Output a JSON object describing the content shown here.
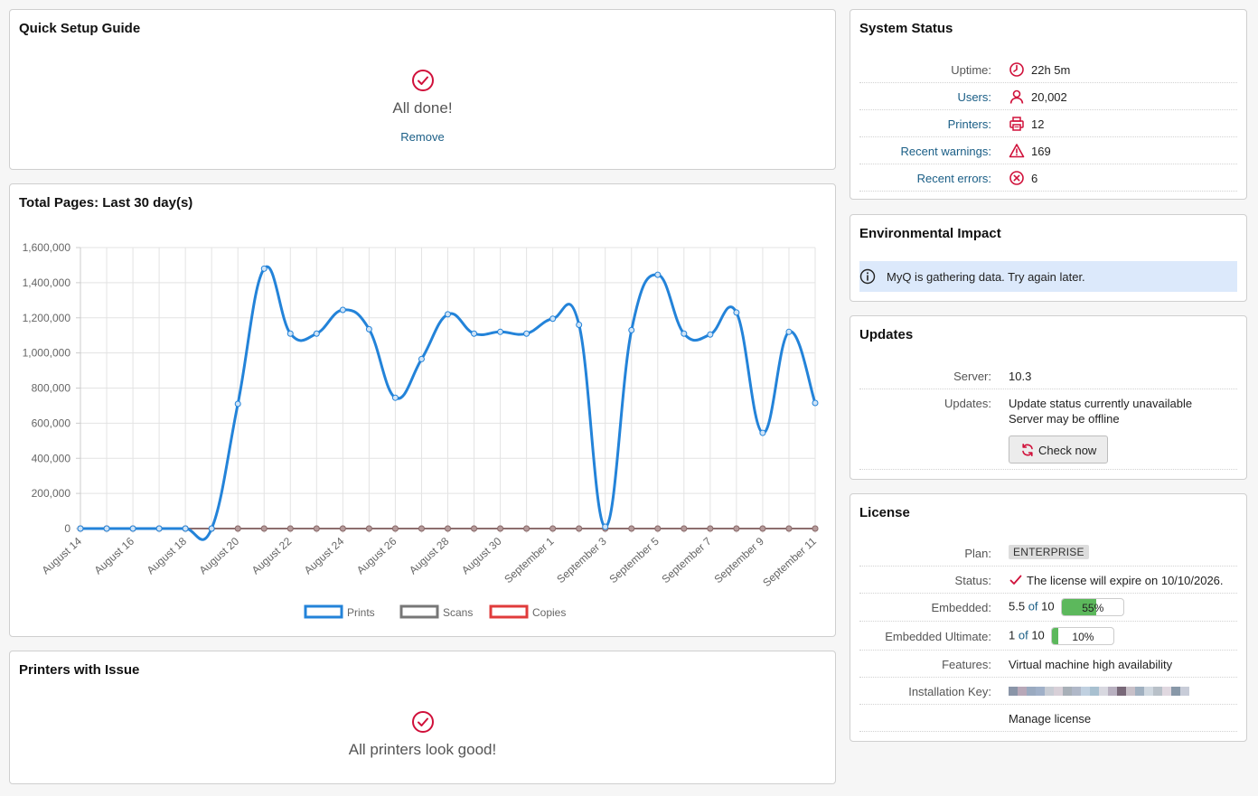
{
  "setup": {
    "title": "Quick Setup Guide",
    "status": "All done!",
    "remove": "Remove"
  },
  "chart_panel": {
    "title": "Total Pages: Last 30 day(s)"
  },
  "chart_data": {
    "type": "line",
    "title": "Total Pages: Last 30 day(s)",
    "x": [
      "August 14",
      "August 15",
      "August 16",
      "August 17",
      "August 18",
      "August 19",
      "August 20",
      "August 21",
      "August 22",
      "August 23",
      "August 24",
      "August 25",
      "August 26",
      "August 27",
      "August 28",
      "August 29",
      "August 30",
      "August 31",
      "September 1",
      "September 2",
      "September 3",
      "September 4",
      "September 5",
      "September 6",
      "September 7",
      "September 8",
      "September 9",
      "September 10",
      "September 11"
    ],
    "x_tick_labels": [
      "August 14",
      "August 16",
      "August 18",
      "August 20",
      "August 22",
      "August 24",
      "August 26",
      "August 28",
      "August 30",
      "September 1",
      "September 3",
      "September 5",
      "September 7",
      "September 9",
      "September 11"
    ],
    "y_tick_labels": [
      "0",
      "200,000",
      "400,000",
      "600,000",
      "800,000",
      "1,000,000",
      "1,200,000",
      "1,400,000",
      "1,600,000"
    ],
    "ylim": [
      0,
      1600000
    ],
    "grid": true,
    "legend_position": "bottom",
    "series": [
      {
        "name": "Prints",
        "color": "#2383d9",
        "values": [
          0,
          0,
          0,
          0,
          0,
          0,
          710000,
          1480000,
          1110000,
          1110000,
          1245000,
          1135000,
          745000,
          965000,
          1220000,
          1110000,
          1120000,
          1110000,
          1195000,
          1160000,
          10000,
          1130000,
          1445000,
          1110000,
          1105000,
          1230000,
          545000,
          1120000,
          715000
        ]
      },
      {
        "name": "Scans",
        "color": "#777777",
        "values": [
          0,
          0,
          0,
          0,
          0,
          0,
          0,
          0,
          0,
          0,
          0,
          0,
          0,
          0,
          0,
          0,
          0,
          0,
          0,
          0,
          0,
          0,
          0,
          0,
          0,
          0,
          0,
          0,
          0
        ]
      },
      {
        "name": "Copies",
        "color": "#e03b3b",
        "values": [
          0,
          0,
          0,
          0,
          0,
          0,
          0,
          0,
          0,
          0,
          0,
          0,
          0,
          0,
          0,
          0,
          0,
          0,
          0,
          0,
          0,
          0,
          0,
          0,
          0,
          0,
          0,
          0,
          0
        ]
      }
    ]
  },
  "printers_issue": {
    "title": "Printers with Issue",
    "status": "All printers look good!"
  },
  "system_status": {
    "title": "System Status",
    "rows": [
      {
        "label": "Uptime:",
        "value": "22h 5m",
        "icon": "clock-icon"
      },
      {
        "label": "Users:",
        "value": "20,002",
        "icon": "user-icon"
      },
      {
        "label": "Printers:",
        "value": "12",
        "icon": "printer-icon"
      },
      {
        "label": "Recent warnings:",
        "value": "169",
        "icon": "warning-icon"
      },
      {
        "label": "Recent errors:",
        "value": "6",
        "icon": "error-icon"
      }
    ]
  },
  "environment": {
    "title": "Environmental Impact",
    "message": "MyQ is gathering data. Try again later."
  },
  "updates": {
    "title": "Updates",
    "server_label": "Server:",
    "server_value": "10.3",
    "updates_label": "Updates:",
    "updates_line1": "Update status currently unavailable",
    "updates_line2": "Server may be offline",
    "check_button": "Check now"
  },
  "license": {
    "title": "License",
    "plan_label": "Plan:",
    "plan_value": "ENTERPRISE",
    "status_label": "Status:",
    "status_value": "The license will expire on 10/10/2026.",
    "embedded_label": "Embedded:",
    "embedded_used": "5.5",
    "embedded_of": "of",
    "embedded_total": "10",
    "embedded_percent": "55%",
    "embedded_fraction": 0.55,
    "ultimate_label": "Embedded Ultimate:",
    "ultimate_used": "1",
    "ultimate_of": "of",
    "ultimate_total": "10",
    "ultimate_percent": "10%",
    "ultimate_fraction": 0.1,
    "features_label": "Features:",
    "features_value": "Virtual machine high availability",
    "key_label": "Installation Key:",
    "manage": "Manage license"
  },
  "colors": {
    "accent_red": "#d0103a",
    "link": "#1a5e86",
    "progress_fill": "#5cb85c",
    "info_bg": "#dce9fb"
  }
}
